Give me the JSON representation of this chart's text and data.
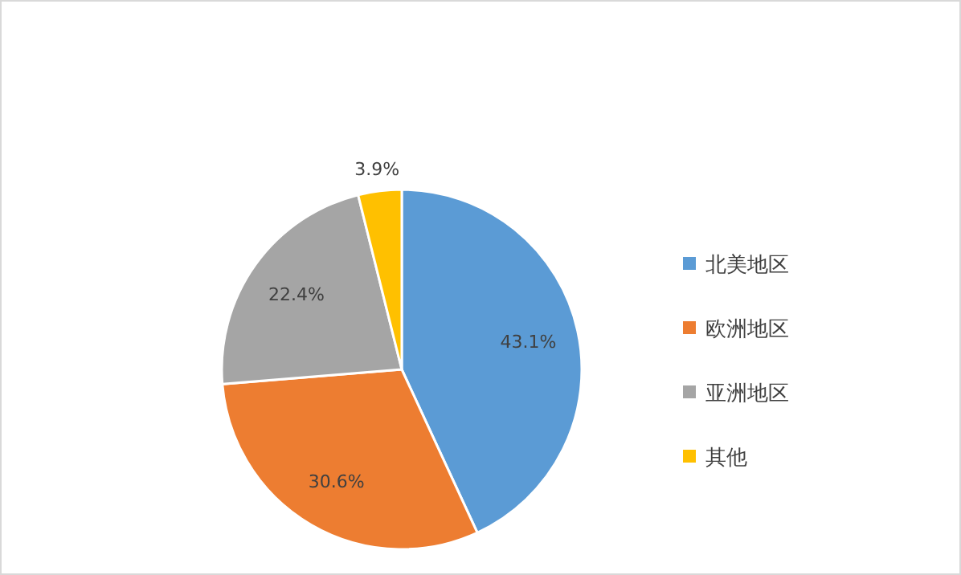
{
  "chart_data": {
    "type": "pie",
    "categories": [
      "北美地区",
      "欧洲地区",
      "亚洲地区",
      "其他"
    ],
    "values": [
      43.1,
      30.6,
      22.4,
      3.9
    ],
    "colors": [
      "#5b9bd5",
      "#ed7d31",
      "#a5a5a5",
      "#ffc000"
    ],
    "value_labels": [
      "43.1%",
      "30.6%",
      "22.4%",
      "3.9%"
    ],
    "legend": "right"
  }
}
